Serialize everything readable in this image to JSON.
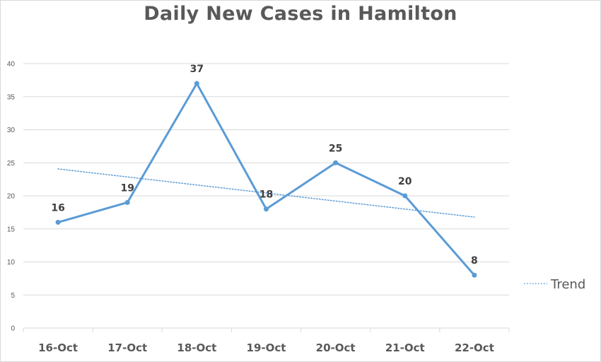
{
  "chart_data": {
    "type": "line",
    "title": "Daily New Cases in Hamilton",
    "categories": [
      "16-Oct",
      "17-Oct",
      "18-Oct",
      "19-Oct",
      "20-Oct",
      "21-Oct",
      "22-Oct"
    ],
    "series": [
      {
        "values": [
          16,
          19,
          37,
          18,
          25,
          20,
          8
        ],
        "color": "#5b9bd5",
        "data_labels": true
      }
    ],
    "trendline": {
      "name": "Trend",
      "type": "linear",
      "style": "dotted",
      "color": "#5b9bd5"
    },
    "ylim": [
      0,
      40
    ],
    "yticks": [
      0,
      5,
      10,
      15,
      20,
      25,
      30,
      35,
      40
    ],
    "grid": true,
    "legend": "right",
    "xlabel": "",
    "ylabel": ""
  }
}
